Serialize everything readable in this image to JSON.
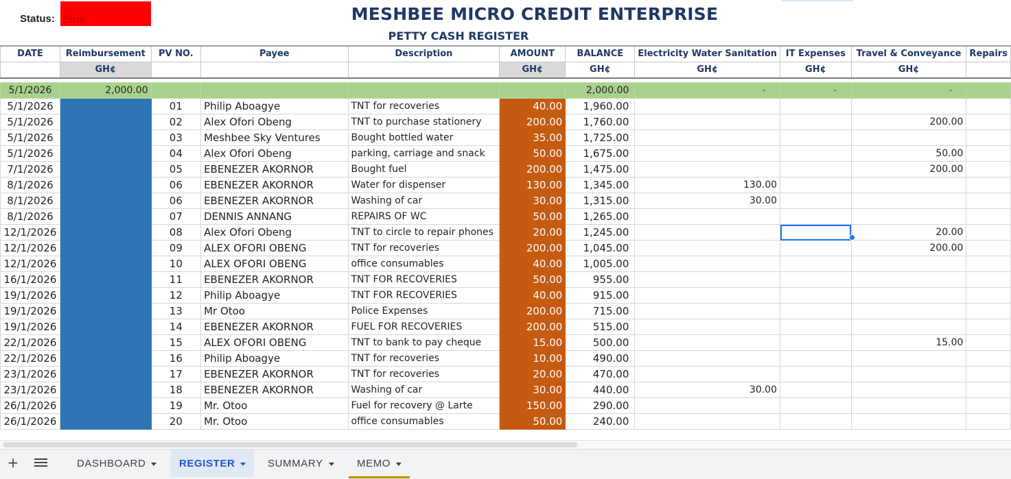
{
  "header": {
    "status_label": "Status:",
    "status_value": "Error",
    "title": "MESHBEE MICRO CREDIT ENTERPRISE",
    "subtitle": "PETTY CASH REGISTER"
  },
  "columns": {
    "date": "DATE",
    "reimbursement": "Reimbursement",
    "pv_no": "PV NO.",
    "payee": "Payee",
    "description": "Description",
    "amount": "AMOUNT",
    "balance": "BALANCE",
    "ews": "Electricity Water Sanitation",
    "it": "IT Expenses",
    "travel": "Travel & Conveyance",
    "repairs": "Repairs"
  },
  "currency": "GH¢",
  "opening": {
    "date": "5/1/2026",
    "reimbursement": "2,000.00",
    "balance": "2,000.00",
    "ews": "-",
    "it": "-",
    "travel": "-"
  },
  "rows": [
    {
      "date": "5/1/2026",
      "pv": "01",
      "payee": "Philip Aboagye",
      "description": "TNT for recoveries",
      "amount": "40.00",
      "balance": "1,960.00",
      "ews": "",
      "it": "",
      "travel": ""
    },
    {
      "date": "5/1/2026",
      "pv": "02",
      "payee": "Alex Ofori Obeng",
      "description": "TNT to purchase stationery",
      "amount": "200.00",
      "balance": "1,760.00",
      "ews": "",
      "it": "",
      "travel": "200.00"
    },
    {
      "date": "5/1/2026",
      "pv": "03",
      "payee": "Meshbee Sky Ventures",
      "description": "Bought bottled water",
      "amount": "35.00",
      "balance": "1,725.00",
      "ews": "",
      "it": "",
      "travel": ""
    },
    {
      "date": "5/1/2026",
      "pv": "04",
      "payee": "Alex Ofori Obeng",
      "description": "parking, carriage and snack",
      "amount": "50.00",
      "balance": "1,675.00",
      "ews": "",
      "it": "",
      "travel": "50.00"
    },
    {
      "date": "7/1/2026",
      "pv": "05",
      "payee": "EBENEZER AKORNOR",
      "description": "Bought fuel",
      "amount": "200.00",
      "balance": "1,475.00",
      "ews": "",
      "it": "",
      "travel": "200.00"
    },
    {
      "date": "8/1/2026",
      "pv": "06",
      "payee": "EBENEZER AKORNOR",
      "description": "Water for dispenser",
      "amount": "130.00",
      "balance": "1,345.00",
      "ews": "130.00",
      "it": "",
      "travel": ""
    },
    {
      "date": "8/1/2026",
      "pv": "06",
      "payee": "EBENEZER AKORNOR",
      "description": "Washing of car",
      "amount": "30.00",
      "balance": "1,315.00",
      "ews": "30.00",
      "it": "",
      "travel": ""
    },
    {
      "date": "8/1/2026",
      "pv": "07",
      "payee": "DENNIS ANNANG",
      "description": "REPAIRS OF WC",
      "amount": "50.00",
      "balance": "1,265.00",
      "ews": "",
      "it": "",
      "travel": ""
    },
    {
      "date": "12/1/2026",
      "pv": "08",
      "payee": "Alex Ofori Obeng",
      "description": "TNT to circle to repair phones",
      "amount": "20.00",
      "balance": "1,245.00",
      "ews": "",
      "it": "",
      "travel": "20.00"
    },
    {
      "date": "12/1/2026",
      "pv": "09",
      "payee": "ALEX OFORI OBENG",
      "description": "TNT for recoveries",
      "amount": "200.00",
      "balance": "1,045.00",
      "ews": "",
      "it": "",
      "travel": "200.00"
    },
    {
      "date": "12/1/2026",
      "pv": "10",
      "payee": "ALEX OFORI OBENG",
      "description": "office consumables",
      "amount": "40.00",
      "balance": "1,005.00",
      "ews": "",
      "it": "",
      "travel": ""
    },
    {
      "date": "16/1/2026",
      "pv": "11",
      "payee": "EBENEZER AKORNOR",
      "description": "TNT FOR RECOVERIES",
      "amount": "50.00",
      "balance": "955.00",
      "ews": "",
      "it": "",
      "travel": ""
    },
    {
      "date": "19/1/2026",
      "pv": "12",
      "payee": "Philip Aboagye",
      "description": "TNT FOR RECOVERIES",
      "amount": "40.00",
      "balance": "915.00",
      "ews": "",
      "it": "",
      "travel": ""
    },
    {
      "date": "19/1/2026",
      "pv": "13",
      "payee": "Mr Otoo",
      "description": "Police Expenses",
      "amount": "200.00",
      "balance": "715.00",
      "ews": "",
      "it": "",
      "travel": ""
    },
    {
      "date": "19/1/2026",
      "pv": "14",
      "payee": "EBENEZER AKORNOR",
      "description": "FUEL FOR RECOVERIES",
      "amount": "200.00",
      "balance": "515.00",
      "ews": "",
      "it": "",
      "travel": ""
    },
    {
      "date": "22/1/2026",
      "pv": "15",
      "payee": "ALEX OFORI OBENG",
      "description": "TNT to bank to pay cheque",
      "amount": "15.00",
      "balance": "500.00",
      "ews": "",
      "it": "",
      "travel": "15.00"
    },
    {
      "date": "22/1/2026",
      "pv": "16",
      "payee": "Philip Aboagye",
      "description": "TNT for recoveries",
      "amount": "10.00",
      "balance": "490.00",
      "ews": "",
      "it": "",
      "travel": ""
    },
    {
      "date": "23/1/2026",
      "pv": "17",
      "payee": "EBENEZER AKORNOR",
      "description": "TNT for recoveries",
      "amount": "20.00",
      "balance": "470.00",
      "ews": "",
      "it": "",
      "travel": ""
    },
    {
      "date": "23/1/2026",
      "pv": "18",
      "payee": "EBENEZER AKORNOR",
      "description": "Washing of car",
      "amount": "30.00",
      "balance": "440.00",
      "ews": "30.00",
      "it": "",
      "travel": ""
    },
    {
      "date": "26/1/2026",
      "pv": "19",
      "payee": "Mr. Otoo",
      "description": "Fuel for recovery @ Larte",
      "amount": "150.00",
      "balance": "290.00",
      "ews": "",
      "it": "",
      "travel": ""
    },
    {
      "date": "26/1/2026",
      "pv": "20",
      "payee": "Mr. Otoo",
      "description": "office consumables",
      "amount": "50.00",
      "balance": "240.00",
      "ews": "",
      "it": "",
      "travel": ""
    }
  ],
  "tabs": {
    "add_label": "+",
    "list_icon": "menu-icon",
    "items": [
      {
        "label": "DASHBOARD"
      },
      {
        "label": "REGISTER"
      },
      {
        "label": "SUMMARY"
      },
      {
        "label": "MEMO"
      }
    ]
  },
  "colors": {
    "status_bg": "#ff0000",
    "opening_row": "#a9d18e",
    "reimbursement_fill": "#2e75b6",
    "amount_fill": "#c55a11",
    "title": "#1f3864",
    "active_tab": "#1a57c9"
  }
}
